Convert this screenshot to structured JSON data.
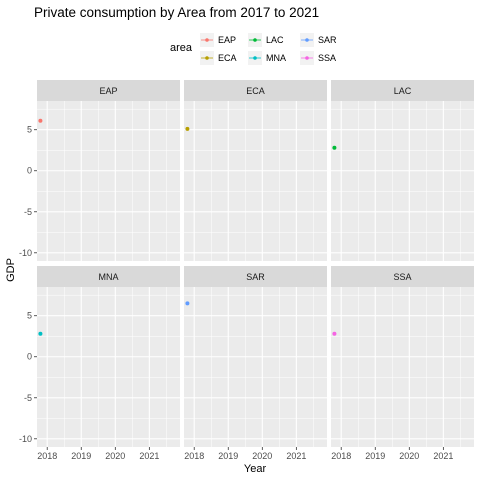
{
  "chart_data": {
    "type": "scatter",
    "title": "Private consumption by Area from 2017 to 2021",
    "xlabel": "Year",
    "ylabel": "GDP",
    "xlim": [
      2017.7,
      2021.9
    ],
    "ylim": [
      -11,
      8.5
    ],
    "x_ticks": [
      2018,
      2019,
      2020,
      2021
    ],
    "y_ticks": [
      -10,
      -5,
      0,
      5
    ],
    "grid": true,
    "legend": {
      "title": "area",
      "position": "top",
      "entries": [
        "EAP",
        "ECA",
        "LAC",
        "MNA",
        "SAR",
        "SSA"
      ]
    },
    "facets": [
      "EAP",
      "ECA",
      "LAC",
      "MNA",
      "SAR",
      "SSA"
    ],
    "series": [
      {
        "name": "EAP",
        "color": "#F8766D",
        "points": [
          {
            "x": 2017.8,
            "y": 6.1
          }
        ]
      },
      {
        "name": "ECA",
        "color": "#B79F00",
        "points": [
          {
            "x": 2017.8,
            "y": 5.1
          }
        ]
      },
      {
        "name": "LAC",
        "color": "#00BA38",
        "points": [
          {
            "x": 2017.8,
            "y": 2.8
          }
        ]
      },
      {
        "name": "MNA",
        "color": "#00BFC4",
        "points": [
          {
            "x": 2017.8,
            "y": 2.8
          }
        ]
      },
      {
        "name": "SAR",
        "color": "#619CFF",
        "points": [
          {
            "x": 2017.8,
            "y": 6.5
          }
        ]
      },
      {
        "name": "SSA",
        "color": "#F564E3",
        "points": [
          {
            "x": 2017.8,
            "y": 2.8
          }
        ]
      }
    ]
  }
}
